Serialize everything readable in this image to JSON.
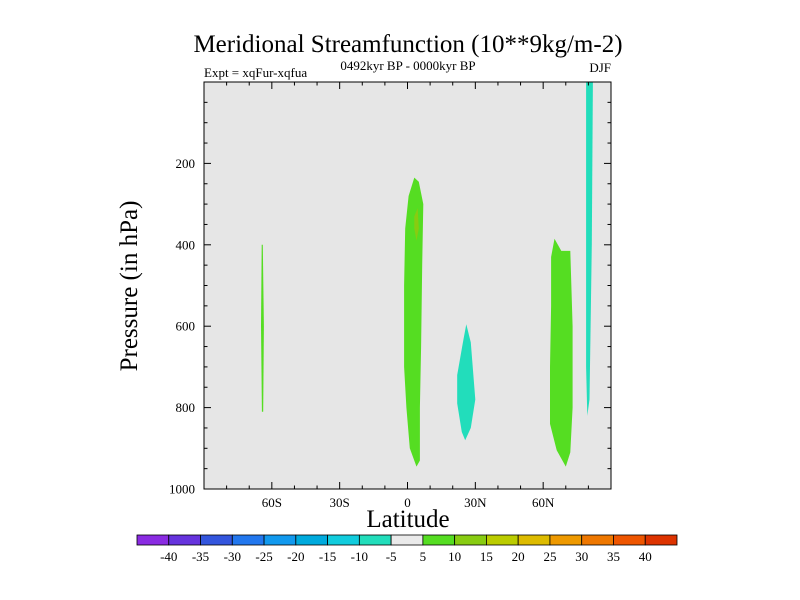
{
  "chart_data": {
    "type": "contour",
    "title": "Meridional Streamfunction (10**9kg/m-2)",
    "subtitle": "0492kyr BP - 0000kyr BP",
    "left_label": "Expt = xqFur-xqfua",
    "right_label": "DJF",
    "xlabel": "Latitude",
    "ylabel": "Pressure (in hPa)",
    "xlim": [
      -90,
      90
    ],
    "ylim": [
      1000,
      0
    ],
    "x_ticks": [
      {
        "value": -60,
        "label": "60S"
      },
      {
        "value": -30,
        "label": "30S"
      },
      {
        "value": 0,
        "label": "0"
      },
      {
        "value": 30,
        "label": "30N"
      },
      {
        "value": 60,
        "label": "60N"
      }
    ],
    "y_ticks": [
      {
        "value": 200,
        "label": "200"
      },
      {
        "value": 400,
        "label": "400"
      },
      {
        "value": 600,
        "label": "600"
      },
      {
        "value": 800,
        "label": "800"
      },
      {
        "value": 1000,
        "label": "1000"
      }
    ],
    "background_color": "#e6e6e6",
    "regions": [
      {
        "name": "cell-60s-positive",
        "color": "#55dd22",
        "points": [
          [
            -64.5,
            400
          ],
          [
            -64.0,
            400
          ],
          [
            -63.5,
            600
          ],
          [
            -63.8,
            810
          ],
          [
            -64.4,
            810
          ],
          [
            -64.8,
            600
          ]
        ]
      },
      {
        "name": "cell-equator-positive",
        "color": "#55dd22",
        "points": [
          [
            -1,
            360
          ],
          [
            0.5,
            280
          ],
          [
            3,
            235
          ],
          [
            5,
            245
          ],
          [
            7,
            300
          ],
          [
            6.5,
            450
          ],
          [
            6,
            650
          ],
          [
            5.5,
            800
          ],
          [
            5.5,
            930
          ],
          [
            4,
            945
          ],
          [
            1,
            900
          ],
          [
            -0.5,
            800
          ],
          [
            -1.5,
            700
          ],
          [
            -1.5,
            500
          ]
        ]
      },
      {
        "name": "cell-equator-core",
        "color": "#88cc11",
        "points": [
          [
            3,
            330
          ],
          [
            4.5,
            310
          ],
          [
            5,
            360
          ],
          [
            4,
            390
          ],
          [
            3,
            360
          ]
        ]
      },
      {
        "name": "cell-20n-negative",
        "color": "#22ddbb",
        "points": [
          [
            22,
            720
          ],
          [
            24.5,
            640
          ],
          [
            26,
            595
          ],
          [
            28,
            640
          ],
          [
            30,
            780
          ],
          [
            28,
            850
          ],
          [
            25.5,
            880
          ],
          [
            24,
            860
          ],
          [
            22,
            790
          ]
        ]
      },
      {
        "name": "cell-60n-positive",
        "color": "#55dd22",
        "points": [
          [
            63.5,
            430
          ],
          [
            65,
            385
          ],
          [
            68,
            415
          ],
          [
            72,
            415
          ],
          [
            73,
            600
          ],
          [
            73,
            800
          ],
          [
            72,
            910
          ],
          [
            70,
            945
          ],
          [
            66,
            905
          ],
          [
            63,
            840
          ],
          [
            63,
            700
          ],
          [
            63.5,
            550
          ]
        ]
      },
      {
        "name": "cell-80n-negative",
        "color": "#22ddbb",
        "points": [
          [
            79,
            0
          ],
          [
            82,
            0
          ],
          [
            81.5,
            400
          ],
          [
            81,
            600
          ],
          [
            80.5,
            780
          ],
          [
            79.5,
            820
          ],
          [
            79,
            700
          ],
          [
            79,
            300
          ]
        ]
      }
    ],
    "colorbar": {
      "labels": [
        "-40",
        "-35",
        "-30",
        "-25",
        "-20",
        "-15",
        "-10",
        "-5",
        "5",
        "10",
        "15",
        "20",
        "25",
        "30",
        "35",
        "40"
      ],
      "colors": [
        "#8a2be2",
        "#6633dd",
        "#3355dd",
        "#2277ee",
        "#1199ee",
        "#00aadd",
        "#11ccdd",
        "#22ddbb",
        "#eaeaea",
        "#55dd22",
        "#88cc11",
        "#bbcc00",
        "#ddbb00",
        "#ee9900",
        "#ee7700",
        "#ee5500",
        "#dd3300"
      ]
    }
  }
}
